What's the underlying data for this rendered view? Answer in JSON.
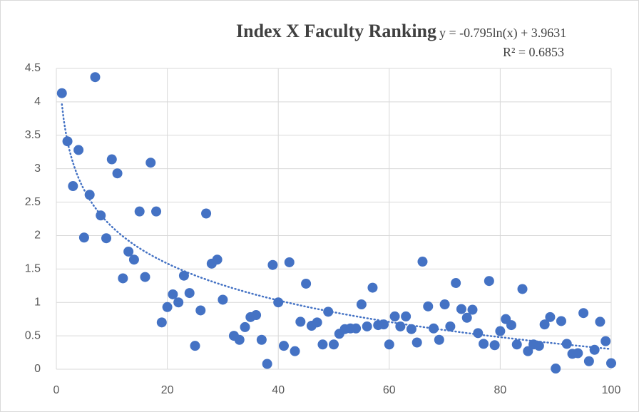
{
  "chart_data": {
    "type": "scatter",
    "title": "Index X Faculty Ranking",
    "x": [
      1,
      2,
      3,
      4,
      5,
      6,
      7,
      8,
      9,
      10,
      11,
      12,
      13,
      14,
      15,
      16,
      17,
      18,
      19,
      20,
      21,
      22,
      23,
      24,
      25,
      26,
      27,
      28,
      29,
      30,
      32,
      33,
      34,
      35,
      36,
      37,
      38,
      39,
      40,
      41,
      42,
      43,
      44,
      45,
      46,
      47,
      48,
      49,
      50,
      51,
      52,
      53,
      54,
      55,
      56,
      57,
      58,
      59,
      60,
      61,
      62,
      63,
      64,
      65,
      66,
      67,
      68,
      69,
      70,
      71,
      72,
      73,
      74,
      75,
      76,
      77,
      78,
      79,
      80,
      81,
      82,
      83,
      84,
      85,
      86,
      87,
      88,
      89,
      90,
      91,
      92,
      93,
      94,
      95,
      96,
      97,
      98,
      99,
      100
    ],
    "values": [
      4.13,
      3.41,
      2.74,
      3.28,
      1.97,
      2.61,
      4.37,
      2.3,
      1.96,
      3.14,
      2.93,
      1.36,
      1.76,
      1.64,
      2.36,
      1.38,
      3.09,
      2.36,
      0.7,
      0.93,
      1.12,
      1.0,
      1.4,
      1.14,
      0.35,
      0.88,
      2.33,
      1.58,
      1.64,
      1.04,
      0.5,
      0.44,
      0.63,
      0.78,
      0.81,
      0.44,
      0.08,
      1.56,
      1.0,
      0.35,
      1.6,
      0.27,
      0.71,
      1.28,
      0.65,
      0.7,
      0.37,
      0.86,
      0.37,
      0.53,
      0.6,
      0.61,
      0.61,
      0.97,
      0.64,
      1.22,
      0.66,
      0.67,
      0.37,
      0.79,
      0.64,
      0.79,
      0.6,
      0.4,
      1.61,
      0.94,
      0.61,
      0.44,
      0.97,
      0.64,
      1.29,
      0.9,
      0.77,
      0.89,
      0.54,
      0.38,
      1.32,
      0.36,
      0.57,
      0.75,
      0.66,
      0.37,
      1.2,
      0.27,
      0.37,
      0.35,
      0.67,
      0.78,
      0.01,
      0.72,
      0.38,
      0.23,
      0.24,
      0.84,
      0.12,
      0.29,
      0.71,
      0.42,
      0.09
    ],
    "color": "#4472c4",
    "trendline": {
      "type": "log",
      "slope": -0.795,
      "intercept": 3.9631,
      "equation": "y = -0.795ln(x) + 3.9631",
      "r2": "R² = 0.6853"
    },
    "xlim": [
      0,
      100
    ],
    "xticks": [
      0,
      20,
      40,
      60,
      80,
      100
    ],
    "ylim": [
      0,
      4.5
    ],
    "yticks": [
      0,
      0.5,
      1,
      1.5,
      2,
      2.5,
      3,
      3.5,
      4,
      4.5
    ],
    "grid": true
  }
}
